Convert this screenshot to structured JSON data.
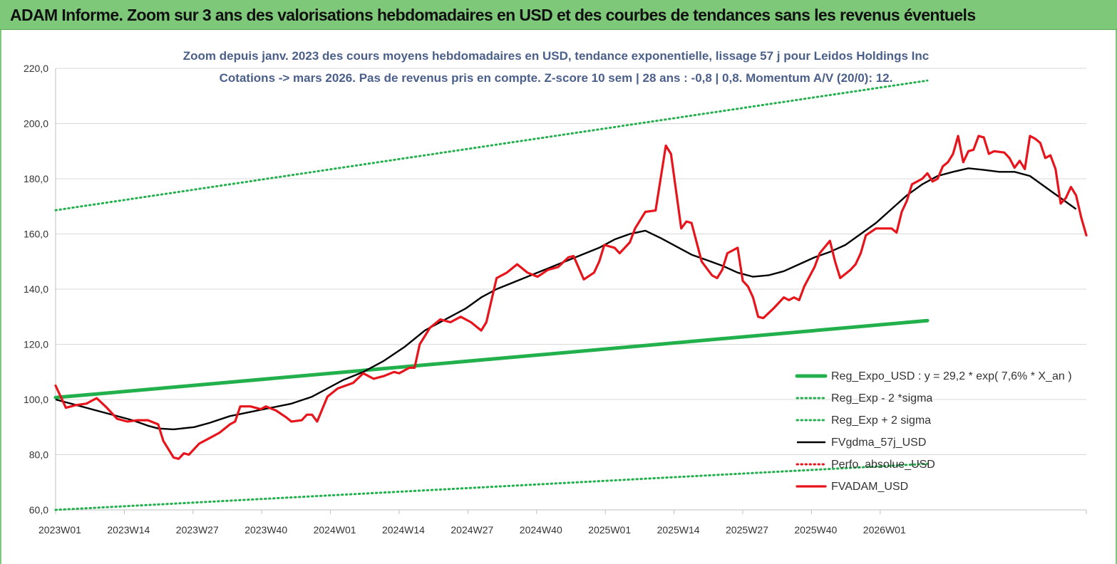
{
  "banner": {
    "title": "ADAM Informe. Zoom sur 3 ans des valorisations hebdomadaires en USD et des courbes de tendances sans les revenus éventuels"
  },
  "colors": {
    "banner_bg": "#7ec87a",
    "trend_green": "#22b04c",
    "smooth_black": "#000000",
    "price_red": "#e8141c",
    "subtitle_blue": "#4a5f8a"
  },
  "chart_data": {
    "type": "line",
    "title_line1": "Zoom depuis janv. 2023 des cours moyens hebdomadaires en USD, tendance exponentielle, lissage 57 j pour Leidos Holdings Inc",
    "title_line2": "Cotations -> mars 2026. Pas de revenus pris en  compte. Z-score 10 sem  | 28 ans : -0,8  | 0,8. Momentum A/V (20/0): 12.",
    "ylim": [
      60,
      220
    ],
    "y_ticks": [
      "60,0",
      "80,0",
      "100,0",
      "120,0",
      "140,0",
      "160,0",
      "180,0",
      "200,0",
      "220,0"
    ],
    "x_ticks": [
      "2023W01",
      "2023W14",
      "2023W27",
      "2023W40",
      "2024W01",
      "2024W14",
      "2024W27",
      "2024W40",
      "2025W01",
      "2025W14",
      "2025W27",
      "2025W40",
      "2026W01"
    ],
    "grid": "horizontal",
    "legend_position": "bottom-right",
    "x_weeks_start": "2023W01",
    "series": [
      {
        "name": "Reg_Expo_USD : y = 29,2 * exp( 7,6% *  X_an )",
        "style": "solid-thick",
        "color": "#22b04c",
        "points": [
          [
            0,
            100.7
          ],
          [
            170,
            128.6
          ]
        ]
      },
      {
        "name": "Reg_Exp - 2 *sigma",
        "style": "dotted",
        "color": "#22b04c",
        "points": [
          [
            0,
            60.0
          ],
          [
            170,
            76.7
          ]
        ]
      },
      {
        "name": "Reg_Exp + 2 sigma",
        "style": "dotted",
        "color": "#22b04c",
        "points": [
          [
            0,
            168.6
          ],
          [
            170,
            215.6
          ]
        ]
      },
      {
        "name": "FVgdma_57j_USD",
        "style": "solid",
        "color": "#000000",
        "points": [
          [
            0,
            100
          ],
          [
            5,
            97.5
          ],
          [
            10,
            95
          ],
          [
            15,
            92.5
          ],
          [
            18,
            90.5
          ],
          [
            20,
            89.5
          ],
          [
            23,
            89.2
          ],
          [
            27,
            90
          ],
          [
            30,
            91.5
          ],
          [
            34,
            94
          ],
          [
            38,
            95.5
          ],
          [
            42,
            97
          ],
          [
            46,
            98.5
          ],
          [
            50,
            101
          ],
          [
            53,
            104
          ],
          [
            56,
            107
          ],
          [
            60,
            110
          ],
          [
            64,
            114
          ],
          [
            68,
            119
          ],
          [
            72,
            125
          ],
          [
            76,
            129
          ],
          [
            80,
            133
          ],
          [
            83,
            137
          ],
          [
            86,
            140
          ],
          [
            90,
            143
          ],
          [
            94,
            146
          ],
          [
            98,
            149
          ],
          [
            102,
            152
          ],
          [
            106,
            155
          ],
          [
            109,
            158
          ],
          [
            112,
            160
          ],
          [
            115,
            161.2
          ],
          [
            118,
            158.5
          ],
          [
            121,
            155.5
          ],
          [
            124,
            152.5
          ],
          [
            127,
            150.5
          ],
          [
            130,
            148.5
          ],
          [
            133,
            146
          ],
          [
            136,
            144.5
          ],
          [
            139,
            145
          ],
          [
            142,
            146.5
          ],
          [
            145,
            149
          ],
          [
            148,
            151.5
          ],
          [
            151,
            153.5
          ],
          [
            154,
            156
          ],
          [
            157,
            160
          ],
          [
            160,
            164
          ],
          [
            163,
            169
          ],
          [
            166,
            174
          ],
          [
            169,
            178
          ],
          [
            172,
            181
          ],
          [
            175,
            182.5
          ],
          [
            178,
            183.8
          ],
          [
            181,
            183.2
          ],
          [
            184,
            182.5
          ],
          [
            187,
            182.5
          ],
          [
            190,
            181
          ],
          [
            193,
            177
          ],
          [
            196,
            173
          ],
          [
            199,
            169
          ]
        ]
      },
      {
        "name": "Perfo. absolue_USD",
        "style": "dotted",
        "color": "#e8141c",
        "points": []
      },
      {
        "name": "FVADAM_USD",
        "style": "solid-thick",
        "color": "#e8141c",
        "points": [
          [
            0,
            105
          ],
          [
            2,
            97
          ],
          [
            4,
            98
          ],
          [
            6,
            98.5
          ],
          [
            8,
            100.5
          ],
          [
            10,
            97
          ],
          [
            12,
            93
          ],
          [
            14,
            92
          ],
          [
            16,
            92.5
          ],
          [
            18,
            92.5
          ],
          [
            20,
            91
          ],
          [
            21,
            85
          ],
          [
            23,
            79
          ],
          [
            24,
            78.5
          ],
          [
            25,
            80.5
          ],
          [
            26,
            80
          ],
          [
            28,
            84
          ],
          [
            30,
            86
          ],
          [
            32,
            88
          ],
          [
            34,
            91
          ],
          [
            35,
            92
          ],
          [
            36,
            97.5
          ],
          [
            38,
            97.5
          ],
          [
            40,
            96.5
          ],
          [
            41,
            97.5
          ],
          [
            43,
            96
          ],
          [
            45,
            93.5
          ],
          [
            46,
            92
          ],
          [
            48,
            92.5
          ],
          [
            49,
            94.5
          ],
          [
            50,
            94.5
          ],
          [
            51,
            92
          ],
          [
            53,
            101
          ],
          [
            55,
            104
          ],
          [
            58,
            106
          ],
          [
            60,
            109.5
          ],
          [
            62,
            107.5
          ],
          [
            64,
            108.5
          ],
          [
            66,
            110
          ],
          [
            67,
            109.5
          ],
          [
            69,
            111.5
          ],
          [
            70,
            111.5
          ],
          [
            71,
            120
          ],
          [
            73,
            126
          ],
          [
            75,
            129
          ],
          [
            77,
            128
          ],
          [
            79,
            130
          ],
          [
            81,
            128
          ],
          [
            83,
            125
          ],
          [
            84,
            128
          ],
          [
            86,
            144
          ],
          [
            88,
            146
          ],
          [
            90,
            149
          ],
          [
            92,
            146
          ],
          [
            94,
            144.5
          ],
          [
            96,
            147
          ],
          [
            98,
            148
          ],
          [
            100,
            151.5
          ],
          [
            101,
            152
          ],
          [
            103,
            143.5
          ],
          [
            105,
            146
          ],
          [
            106,
            150
          ],
          [
            107,
            156
          ],
          [
            109,
            155
          ],
          [
            110,
            153
          ],
          [
            112,
            157
          ],
          [
            113,
            162
          ],
          [
            115,
            168
          ],
          [
            117,
            168.5
          ],
          [
            119,
            192
          ],
          [
            120,
            189
          ],
          [
            122,
            162
          ],
          [
            123,
            164.5
          ],
          [
            124,
            164
          ],
          [
            126,
            150
          ],
          [
            128,
            145
          ],
          [
            129,
            144
          ],
          [
            130,
            147
          ],
          [
            131,
            153
          ],
          [
            133,
            155
          ],
          [
            134,
            143
          ],
          [
            135,
            141
          ],
          [
            136,
            137
          ],
          [
            137,
            130
          ],
          [
            138,
            129.5
          ],
          [
            140,
            133
          ],
          [
            142,
            137
          ],
          [
            143,
            136
          ],
          [
            144,
            137
          ],
          [
            145,
            136
          ],
          [
            146,
            141
          ],
          [
            148,
            148
          ],
          [
            149,
            153
          ],
          [
            151,
            157.5
          ],
          [
            152,
            150
          ],
          [
            153,
            144
          ],
          [
            155,
            147
          ],
          [
            156,
            149
          ],
          [
            157,
            153
          ],
          [
            158,
            159.5
          ],
          [
            160,
            162
          ],
          [
            161,
            162
          ],
          [
            163,
            162
          ],
          [
            164,
            160.5
          ],
          [
            165,
            168
          ],
          [
            166,
            172
          ],
          [
            167,
            178
          ],
          [
            169,
            180
          ],
          [
            170,
            182
          ],
          [
            171,
            179
          ],
          [
            172,
            180
          ],
          [
            173,
            184.5
          ],
          [
            174,
            186
          ],
          [
            175,
            189
          ],
          [
            176,
            195.5
          ],
          [
            177,
            186
          ],
          [
            178,
            190
          ],
          [
            179,
            190.5
          ],
          [
            180,
            195.5
          ],
          [
            181,
            195
          ],
          [
            182,
            189
          ],
          [
            183,
            190
          ],
          [
            185,
            189.5
          ],
          [
            186,
            187.5
          ],
          [
            187,
            184
          ],
          [
            188,
            186.5
          ],
          [
            189,
            183.5
          ],
          [
            190,
            195.5
          ],
          [
            191,
            194.5
          ],
          [
            192,
            193
          ],
          [
            193,
            187.5
          ],
          [
            194,
            188.5
          ],
          [
            195,
            183.5
          ],
          [
            196,
            171
          ],
          [
            197,
            173
          ],
          [
            198,
            177
          ],
          [
            199,
            174
          ],
          [
            200,
            166
          ],
          [
            201,
            159.5
          ]
        ]
      }
    ]
  }
}
